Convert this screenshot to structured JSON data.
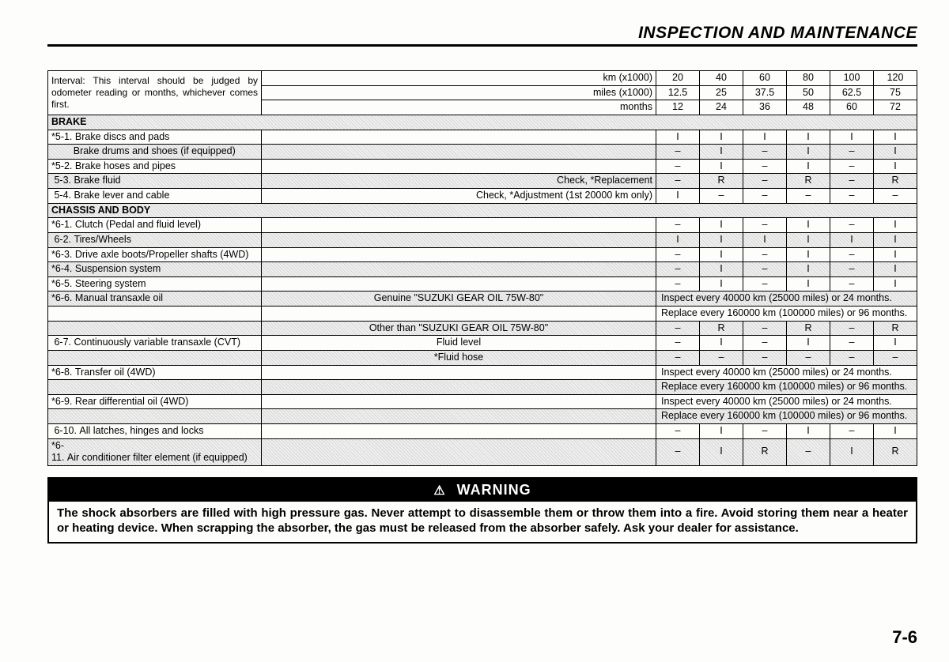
{
  "title": "INSPECTION AND MAINTENANCE",
  "pageNumber": "7-6",
  "head": {
    "intervalNote": "Interval: This interval should be judged by odometer reading or months, whichever comes first.",
    "rows": [
      {
        "label": "km (x1000)",
        "vals": [
          "20",
          "40",
          "60",
          "80",
          "100",
          "120"
        ]
      },
      {
        "label": "miles (x1000)",
        "vals": [
          "12.5",
          "25",
          "37.5",
          "50",
          "62.5",
          "75"
        ]
      },
      {
        "label": "months",
        "vals": [
          "12",
          "24",
          "36",
          "48",
          "60",
          "72"
        ]
      }
    ]
  },
  "sections": [
    {
      "header": "BRAKE",
      "rows": [
        {
          "label": "*5-1. Brake discs and pads",
          "spec": "",
          "v": [
            "I",
            "I",
            "I",
            "I",
            "I",
            "I"
          ]
        },
        {
          "label": "        Brake drums and shoes (if equipped)",
          "spec": "",
          "v": [
            "–",
            "I",
            "–",
            "I",
            "–",
            "I"
          ],
          "shaded": true
        },
        {
          "label": "*5-2. Brake hoses and pipes",
          "spec": "",
          "v": [
            "–",
            "I",
            "–",
            "I",
            "–",
            "I"
          ]
        },
        {
          "label": " 5-3. Brake fluid",
          "spec": "Check, *Replacement",
          "v": [
            "–",
            "R",
            "–",
            "R",
            "–",
            "R"
          ],
          "shaded": true
        },
        {
          "label": " 5-4. Brake lever and cable",
          "spec": "Check, *Adjustment (1st 20000 km only)",
          "v": [
            "I",
            "–",
            "–",
            "–",
            "–",
            "–"
          ]
        }
      ]
    },
    {
      "header": "CHASSIS AND BODY",
      "rows": [
        {
          "label": "*6-1. Clutch (Pedal and fluid level)",
          "spec": "",
          "v": [
            "–",
            "I",
            "–",
            "I",
            "–",
            "I"
          ]
        },
        {
          "label": " 6-2. Tires/Wheels",
          "spec": "",
          "v": [
            "I",
            "I",
            "I",
            "I",
            "I",
            "I"
          ],
          "shaded": true
        },
        {
          "label": "*6-3. Drive axle boots/Propeller shafts (4WD)",
          "spec": "",
          "v": [
            "–",
            "I",
            "–",
            "I",
            "–",
            "I"
          ]
        },
        {
          "label": "*6-4. Suspension system",
          "spec": "",
          "v": [
            "–",
            "I",
            "–",
            "I",
            "–",
            "I"
          ],
          "shaded": true
        },
        {
          "label": "*6-5. Steering system",
          "spec": "",
          "v": [
            "–",
            "I",
            "–",
            "I",
            "–",
            "I"
          ]
        },
        {
          "label": "*6-6. Manual transaxle oil",
          "spec": "Genuine \"SUZUKI GEAR OIL 75W-80\"",
          "merge": "Inspect every 40000 km (25000 miles) or 24 months.",
          "shaded": true
        },
        {
          "label": "",
          "spec": "",
          "merge": "Replace every 160000 km (100000 miles) or 96 months."
        },
        {
          "label": "",
          "spec": "Other than \"SUZUKI GEAR OIL 75W-80\"",
          "v": [
            "–",
            "R",
            "–",
            "R",
            "–",
            "R"
          ],
          "shaded": true
        },
        {
          "label": " 6-7. Continuously variable transaxle (CVT)",
          "spec": "Fluid level",
          "v": [
            "–",
            "I",
            "–",
            "I",
            "–",
            "I"
          ]
        },
        {
          "label": "",
          "spec": "*Fluid hose",
          "v": [
            "–",
            "–",
            "–",
            "–",
            "–",
            "–"
          ],
          "shaded": true
        },
        {
          "label": "*6-8. Transfer oil (4WD)",
          "spec": "",
          "merge": "Inspect every 40000 km (25000 miles) or 24 months."
        },
        {
          "label": "",
          "spec": "",
          "merge": "Replace every 160000 km (100000 miles) or 96 months.",
          "shaded": true
        },
        {
          "label": "*6-9. Rear differential oil (4WD)",
          "spec": "",
          "merge": "Inspect every 40000 km (25000 miles) or 24 months."
        },
        {
          "label": "",
          "spec": "",
          "merge": "Replace every 160000 km (100000 miles) or 96 months.",
          "shaded": true
        },
        {
          "label": " 6-10. All latches, hinges and locks",
          "spec": "",
          "v": [
            "–",
            "I",
            "–",
            "I",
            "–",
            "I"
          ]
        },
        {
          "label": "*6-11. Air conditioner filter element (if equipped)",
          "spec": "",
          "v": [
            "–",
            "I",
            "R",
            "–",
            "I",
            "R"
          ],
          "shaded": true
        }
      ]
    }
  ],
  "warning": {
    "header": "WARNING",
    "body": "The shock absorbers are filled with high pressure gas. Never attempt to disassemble them or throw them into a fire. Avoid storing them near a heater or heating device. When scrapping the absorber, the gas must be released from the absorber safely. Ask your dealer for assistance."
  }
}
